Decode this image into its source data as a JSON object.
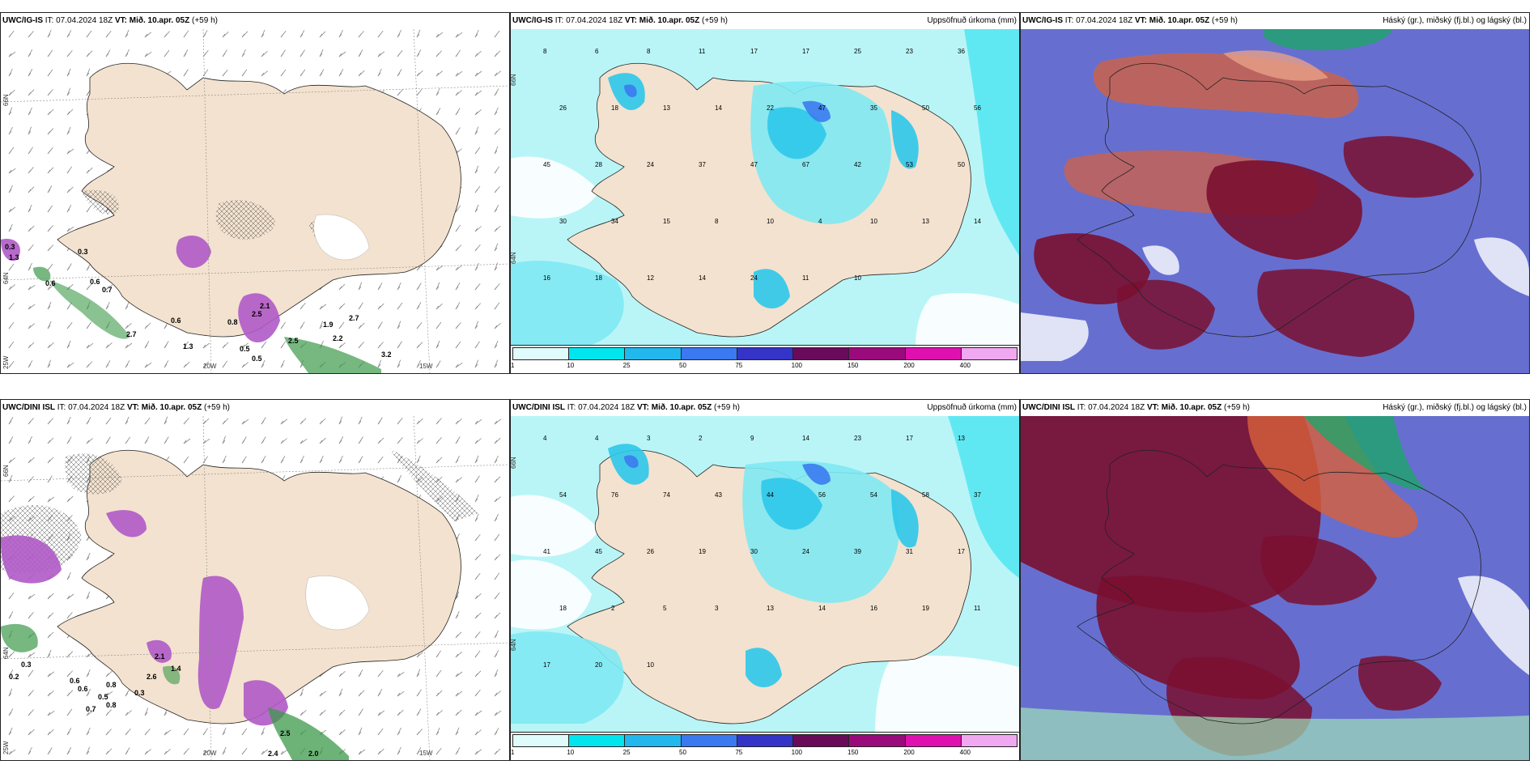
{
  "header_common": {
    "it_label": "IT:",
    "it_value": "07.04.2024 18Z",
    "vt_label": "VT:",
    "vt_value": "Mið. 10.apr. 05Z",
    "lead": "(+59 h)"
  },
  "rows": [
    {
      "model": "UWC/IG-IS",
      "panels": [
        {
          "id": "wind",
          "right_title": ""
        },
        {
          "id": "precip",
          "right_title": "Uppsöfnuð úrkoma (mm)"
        },
        {
          "id": "cloud",
          "right_title": "Háský (gr.), miðský (fj.bl.) og lágský (bl.)"
        }
      ]
    },
    {
      "model": "UWC/DINI ISL",
      "panels": [
        {
          "id": "wind",
          "right_title": ""
        },
        {
          "id": "precip",
          "right_title": "Uppsöfnuð úrkoma (mm)"
        },
        {
          "id": "cloud",
          "right_title": "Háský (gr.), miðský (fj.bl.) og lágský (bl.)"
        }
      ]
    }
  ],
  "wind_axis_labels": {
    "lat_66": "66N",
    "lat_64": "64N",
    "lon_25": "25W",
    "lon_20": "20W",
    "lon_15": "15W"
  },
  "precip_axis_labels": {
    "lat_66": "66N",
    "lat_64": "64N"
  },
  "precip_legend": {
    "colors": [
      "#e0fbfb",
      "#00e5ee",
      "#22b8ee",
      "#3a79f0",
      "#3434c8",
      "#6a0a5a",
      "#9a0a7c",
      "#e010b0",
      "#f0a8f0"
    ],
    "labels": [
      "1",
      "10",
      "25",
      "50",
      "75",
      "100",
      "150",
      "200",
      "400"
    ]
  },
  "colors": {
    "land": "#f3e2cf",
    "sea_precip": "#b9f5f7",
    "precip_low": "#7fe9f2",
    "precip_mid": "#2ec8ea",
    "precip_high": "#3b7bef",
    "precip_very_high": "#2d2dbd",
    "snow_purple": "#b05ac6",
    "rain_green": "#3c9a4a",
    "cloud_high": "#1ea56a",
    "cloud_mid": "#d8603a",
    "cloud_low": "#4b56c8",
    "cloud_dark": "#7a1030"
  },
  "wind_values_row1": [
    "0.3",
    "1.3",
    "0.6",
    "0.6",
    "0.7",
    "0.6",
    "1.3",
    "2.7",
    "0.5",
    "0.5",
    "2.5",
    "2.1",
    "0.8",
    "2.5",
    "1.9",
    "2.2",
    "2.7",
    "3.2",
    "0.3"
  ],
  "wind_values_row2": [
    "0.3",
    "0.2",
    "0.6",
    "0.7",
    "0.8",
    "2.6",
    "2.1",
    "1.4",
    "0.5",
    "2.4",
    "2.0",
    "2.5",
    "0.6",
    "0.8",
    "0.3"
  ],
  "precip_values_row1": [
    "8",
    "6",
    "8",
    "11",
    "17",
    "17",
    "25",
    "23",
    "36",
    "26",
    "18",
    "13",
    "14",
    "22",
    "47",
    "35",
    "50",
    "56",
    "45",
    "28",
    "24",
    "37",
    "47",
    "67",
    "42",
    "53",
    "50",
    "30",
    "34",
    "15",
    "8",
    "10",
    "4",
    "10",
    "13",
    "14",
    "16",
    "18",
    "12",
    "14",
    "24",
    "11",
    "10"
  ],
  "precip_values_row2": [
    "4",
    "4",
    "3",
    "2",
    "9",
    "14",
    "23",
    "17",
    "13",
    "54",
    "76",
    "74",
    "43",
    "44",
    "56",
    "54",
    "58",
    "37",
    "41",
    "45",
    "26",
    "19",
    "30",
    "24",
    "39",
    "31",
    "17",
    "18",
    "2",
    "5",
    "3",
    "13",
    "14",
    "16",
    "19",
    "11",
    "17",
    "20",
    "10"
  ]
}
